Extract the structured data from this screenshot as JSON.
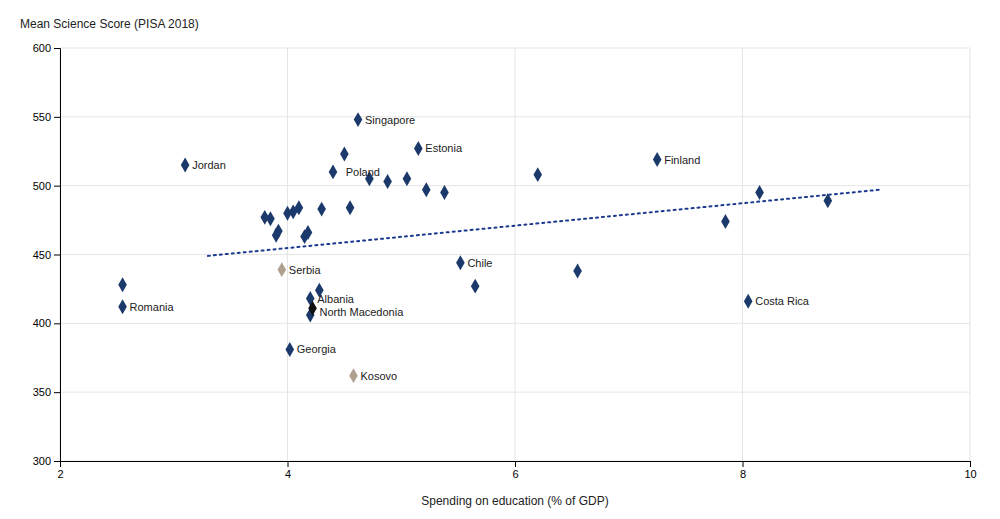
{
  "chart_data": {
    "type": "scatter",
    "ylabel": "Mean Science Score (PISA 2018)",
    "xlabel": "Spending on education  (% of GDP)",
    "xlim": [
      2,
      10
    ],
    "ylim": [
      300,
      600
    ],
    "xticks": [
      2,
      4,
      6,
      8,
      10
    ],
    "yticks": [
      300,
      350,
      400,
      450,
      500,
      550,
      600
    ],
    "grid": true,
    "series": [
      {
        "color": "#1b3a6b",
        "marker": "diamond",
        "x": [
          2.55,
          3.1,
          3.8,
          3.85,
          3.9,
          3.92,
          4.0,
          4.05,
          4.1,
          4.15,
          4.18,
          4.2,
          4.28,
          4.3,
          4.4,
          4.5,
          4.55,
          4.62,
          4.72,
          4.88,
          5.05,
          5.15,
          5.22,
          5.38,
          5.52,
          5.65,
          6.2,
          6.55,
          7.25,
          7.85,
          8.05,
          8.15,
          8.75,
          2.55,
          4.02,
          4.2
        ],
        "values": [
          428,
          515,
          477,
          476,
          464,
          467,
          480,
          481,
          484,
          463,
          466,
          406,
          424,
          483,
          510,
          523,
          484,
          548,
          505,
          503,
          505,
          527,
          497,
          495,
          444,
          427,
          508,
          438,
          519,
          474,
          416,
          495,
          489,
          412,
          381,
          418
        ]
      },
      {
        "color": "#b0a090",
        "marker": "diamond",
        "x": [
          3.95,
          4.58
        ],
        "values": [
          439,
          362
        ]
      },
      {
        "color": "#111111",
        "marker": "diamond",
        "x": [
          4.22
        ],
        "values": [
          411
        ]
      },
      {
        "type": "line",
        "line_style": "dotted",
        "color": "#1b3a8f",
        "x": [
          3.3,
          9.2
        ],
        "values": [
          449,
          497
        ]
      }
    ],
    "annotations": [
      {
        "text": "Romania",
        "x": 2.55,
        "y": 412
      },
      {
        "text": "Jordan",
        "x": 3.1,
        "y": 515
      },
      {
        "text": "Serbia",
        "x": 3.95,
        "y": 439
      },
      {
        "text": "Albania",
        "x": 4.2,
        "y": 418
      },
      {
        "text": "North Macedonia",
        "x": 4.22,
        "y": 411
      },
      {
        "text": "Georgia",
        "x": 4.02,
        "y": 381
      },
      {
        "text": "Kosovo",
        "x": 4.58,
        "y": 362
      },
      {
        "text": "Chile",
        "x": 5.52,
        "y": 444
      },
      {
        "text": "Finland",
        "x": 7.25,
        "y": 519
      },
      {
        "text": "Costa Rica",
        "x": 8.05,
        "y": 416
      },
      {
        "text": "Singapore",
        "x": 4.62,
        "y": 548
      },
      {
        "text": "Estonia",
        "x": 5.15,
        "y": 527
      },
      {
        "text": "Poland",
        "x": 4.45,
        "y": 510
      }
    ]
  }
}
